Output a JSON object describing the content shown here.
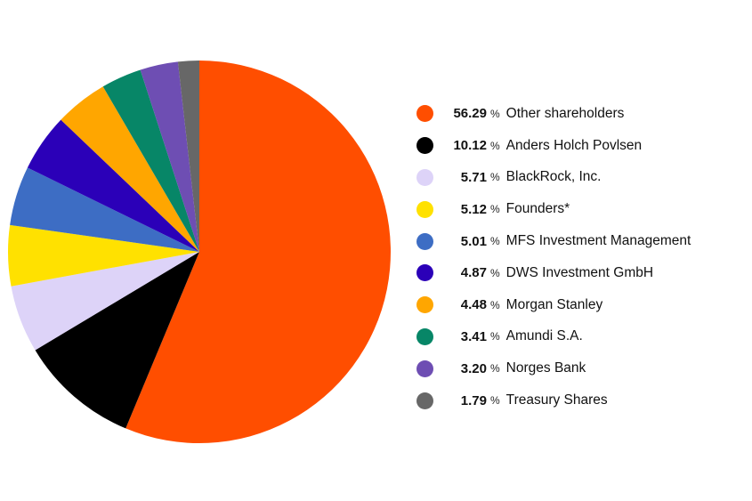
{
  "chart_data": {
    "type": "pie",
    "unit": "%",
    "slices": [
      {
        "label": "Other shareholders",
        "value": 56.29,
        "value_text": "56.29",
        "color": "#FF4E00"
      },
      {
        "label": "Anders Holch Povlsen",
        "value": 10.12,
        "value_text": "10.12",
        "color": "#000000"
      },
      {
        "label": "BlackRock, Inc.",
        "value": 5.71,
        "value_text": "5.71",
        "color": "#DDD3F8"
      },
      {
        "label": "Founders*",
        "value": 5.12,
        "value_text": "5.12",
        "color": "#FFE100"
      },
      {
        "label": "MFS Investment Management",
        "value": 5.01,
        "value_text": "5.01",
        "color": "#3D6DC4"
      },
      {
        "label": "DWS Investment GmbH",
        "value": 4.87,
        "value_text": "4.87",
        "color": "#2B00B8"
      },
      {
        "label": "Morgan Stanley",
        "value": 4.48,
        "value_text": "4.48",
        "color": "#FFA600"
      },
      {
        "label": "Amundi S.A.",
        "value": 3.41,
        "value_text": "3.41",
        "color": "#078667"
      },
      {
        "label": "Norges Bank",
        "value": 3.2,
        "value_text": "3.20",
        "color": "#6E4EB3"
      },
      {
        "label": "Treasury Shares",
        "value": 1.79,
        "value_text": "1.79",
        "color": "#676767"
      }
    ],
    "legend_position": "right"
  }
}
